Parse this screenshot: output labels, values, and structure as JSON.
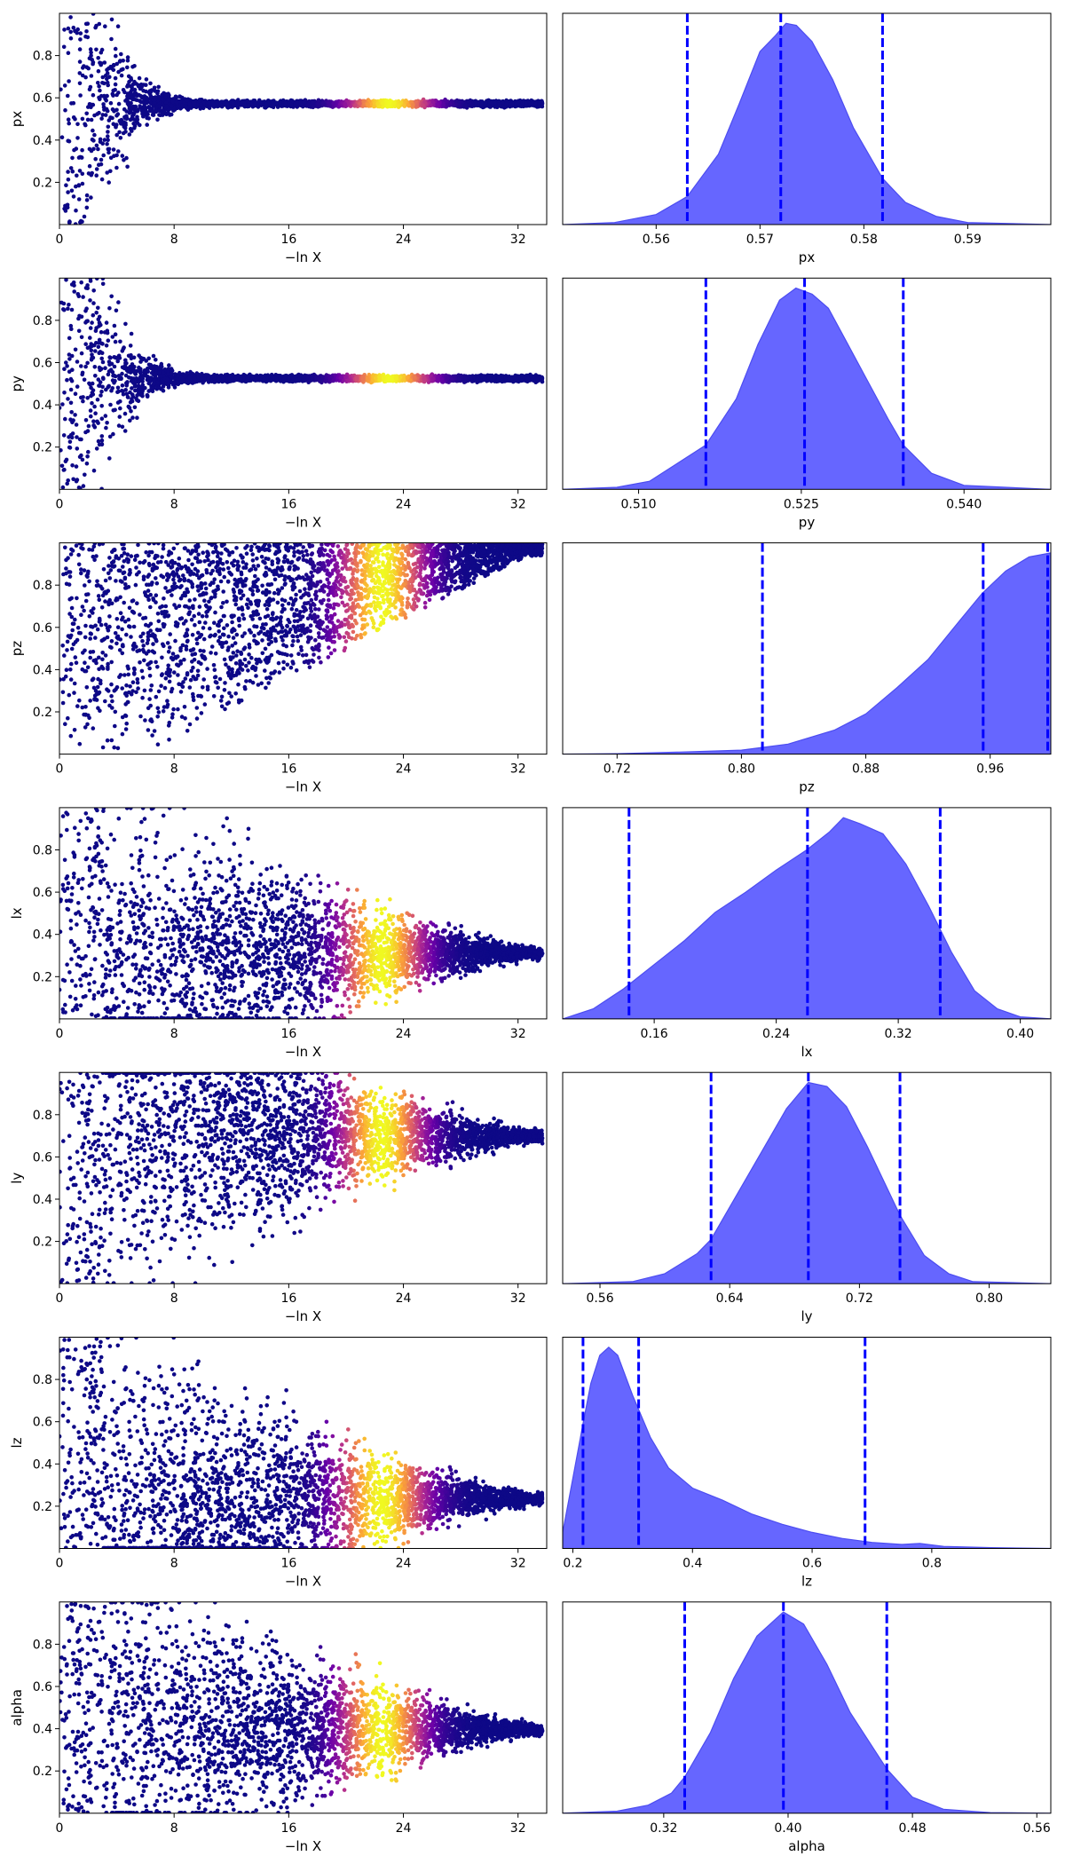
{
  "figure": {
    "background": "#ffffff"
  },
  "colors": {
    "density_fill": "#6666ff",
    "density_edge": "#4c4cf0",
    "quantile_line": "#0000ff",
    "trace_colormap": [
      "#0d0887",
      "#6a00a8",
      "#b12a90",
      "#e16462",
      "#fca636",
      "#f0f921"
    ]
  },
  "chart_data": [
    {
      "parameter": "px",
      "trace": {
        "type": "scatter",
        "xlabel": "−ln X",
        "ylabel": "px",
        "xticks": [
          "0",
          "8",
          "16",
          "24",
          "32"
        ],
        "yticks": [
          "0.2",
          "0.4",
          "0.6",
          "0.8"
        ],
        "xlim": [
          0,
          34
        ],
        "ylim": [
          0,
          1
        ],
        "converged_value": 0.572,
        "collapse_depth": 14,
        "collapse_shape": "funnel",
        "color_peak": 23,
        "color_width": 2.8
      },
      "posterior": {
        "type": "area",
        "xlabel": "px",
        "xticks": [
          "0.56",
          "0.57",
          "0.58",
          "0.59"
        ],
        "xtick_values": [
          0.56,
          0.57,
          0.58,
          0.59
        ],
        "xlim": [
          0.551,
          0.598
        ],
        "peak_x": 0.5725,
        "peak_density": 1.0,
        "quantiles": [
          0.563,
          0.572,
          0.5818
        ],
        "density": [
          [
            0.551,
            0.0
          ],
          [
            0.556,
            0.01
          ],
          [
            0.56,
            0.05
          ],
          [
            0.563,
            0.14
          ],
          [
            0.566,
            0.35
          ],
          [
            0.568,
            0.6
          ],
          [
            0.57,
            0.86
          ],
          [
            0.5715,
            0.94
          ],
          [
            0.5725,
            1.0
          ],
          [
            0.5735,
            0.99
          ],
          [
            0.575,
            0.91
          ],
          [
            0.577,
            0.72
          ],
          [
            0.579,
            0.48
          ],
          [
            0.5818,
            0.23
          ],
          [
            0.584,
            0.11
          ],
          [
            0.587,
            0.04
          ],
          [
            0.59,
            0.01
          ],
          [
            0.598,
            0.0
          ]
        ]
      }
    },
    {
      "parameter": "py",
      "trace": {
        "type": "scatter",
        "xlabel": "−ln X",
        "ylabel": "py",
        "xticks": [
          "0",
          "8",
          "16",
          "24",
          "32"
        ],
        "yticks": [
          "0.2",
          "0.4",
          "0.6",
          "0.8"
        ],
        "xlim": [
          0,
          34
        ],
        "ylim": [
          0,
          1
        ],
        "converged_value": 0.525,
        "collapse_depth": 14,
        "collapse_shape": "funnel",
        "color_peak": 23,
        "color_width": 2.8
      },
      "posterior": {
        "type": "area",
        "xlabel": "py",
        "xticks": [
          "0.510",
          "0.525",
          "0.540"
        ],
        "xtick_values": [
          0.51,
          0.525,
          0.54
        ],
        "xlim": [
          0.503,
          0.548
        ],
        "peak_x": 0.5245,
        "peak_density": 1.0,
        "quantiles": [
          0.5162,
          0.5253,
          0.5344
        ],
        "density": [
          [
            0.503,
            0.0
          ],
          [
            0.508,
            0.01
          ],
          [
            0.511,
            0.04
          ],
          [
            0.5162,
            0.22
          ],
          [
            0.519,
            0.45
          ],
          [
            0.521,
            0.72
          ],
          [
            0.523,
            0.94
          ],
          [
            0.5245,
            1.0
          ],
          [
            0.526,
            0.97
          ],
          [
            0.5275,
            0.9
          ],
          [
            0.529,
            0.75
          ],
          [
            0.531,
            0.55
          ],
          [
            0.533,
            0.35
          ],
          [
            0.5344,
            0.22
          ],
          [
            0.537,
            0.08
          ],
          [
            0.54,
            0.02
          ],
          [
            0.548,
            0.0
          ]
        ]
      }
    },
    {
      "parameter": "pz",
      "trace": {
        "type": "scatter",
        "xlabel": "−ln X",
        "ylabel": "pz",
        "xticks": [
          "0",
          "8",
          "16",
          "24",
          "32"
        ],
        "yticks": [
          "0.2",
          "0.4",
          "0.6",
          "0.8"
        ],
        "xlim": [
          0,
          34
        ],
        "ylim": [
          0,
          1
        ],
        "converged_value": 0.99,
        "collapse_depth": 33,
        "collapse_shape": "top",
        "color_peak": 22.5,
        "color_width": 2.8
      },
      "posterior": {
        "type": "area",
        "xlabel": "pz",
        "xticks": [
          "0.72",
          "0.80",
          "0.88",
          "0.96"
        ],
        "xtick_values": [
          0.72,
          0.8,
          0.88,
          0.96
        ],
        "xlim": [
          0.685,
          0.999
        ],
        "peak_x": 0.99,
        "peak_density": 1.0,
        "quantiles": [
          0.8135,
          0.9555,
          0.997
        ],
        "density": [
          [
            0.685,
            0.0
          ],
          [
            0.72,
            0.002
          ],
          [
            0.76,
            0.01
          ],
          [
            0.8,
            0.02
          ],
          [
            0.83,
            0.05
          ],
          [
            0.86,
            0.12
          ],
          [
            0.88,
            0.2
          ],
          [
            0.9,
            0.33
          ],
          [
            0.92,
            0.47
          ],
          [
            0.94,
            0.66
          ],
          [
            0.955,
            0.8
          ],
          [
            0.97,
            0.91
          ],
          [
            0.985,
            0.98
          ],
          [
            0.999,
            1.0
          ]
        ]
      }
    },
    {
      "parameter": "lx",
      "trace": {
        "type": "scatter",
        "xlabel": "−ln X",
        "ylabel": "lx",
        "xticks": [
          "0",
          "8",
          "16",
          "24",
          "32"
        ],
        "yticks": [
          "0.2",
          "0.4",
          "0.6",
          "0.8"
        ],
        "xlim": [
          0,
          34
        ],
        "ylim": [
          0,
          1
        ],
        "converged_value": 0.31,
        "collapse_depth": 33,
        "collapse_shape": "wedge",
        "color_peak": 22.5,
        "color_width": 2.8
      },
      "posterior": {
        "type": "area",
        "xlabel": "lx",
        "xticks": [
          "0.16",
          "0.24",
          "0.32",
          "0.40"
        ],
        "xtick_values": [
          0.16,
          0.24,
          0.32,
          0.4
        ],
        "xlim": [
          0.1,
          0.42
        ],
        "peak_x": 0.284,
        "peak_density": 1.0,
        "quantiles": [
          0.1435,
          0.2605,
          0.3475
        ],
        "density": [
          [
            0.1,
            0.0
          ],
          [
            0.12,
            0.05
          ],
          [
            0.14,
            0.15
          ],
          [
            0.16,
            0.27
          ],
          [
            0.18,
            0.39
          ],
          [
            0.2,
            0.53
          ],
          [
            0.22,
            0.63
          ],
          [
            0.24,
            0.74
          ],
          [
            0.26,
            0.84
          ],
          [
            0.275,
            0.93
          ],
          [
            0.284,
            1.0
          ],
          [
            0.295,
            0.97
          ],
          [
            0.31,
            0.92
          ],
          [
            0.325,
            0.77
          ],
          [
            0.34,
            0.56
          ],
          [
            0.355,
            0.33
          ],
          [
            0.37,
            0.14
          ],
          [
            0.385,
            0.05
          ],
          [
            0.4,
            0.01
          ],
          [
            0.42,
            0.0
          ]
        ]
      }
    },
    {
      "parameter": "ly",
      "trace": {
        "type": "scatter",
        "xlabel": "−ln X",
        "ylabel": "ly",
        "xticks": [
          "0",
          "8",
          "16",
          "24",
          "32"
        ],
        "yticks": [
          "0.2",
          "0.4",
          "0.6",
          "0.8"
        ],
        "xlim": [
          0,
          34
        ],
        "ylim": [
          0,
          1
        ],
        "converged_value": 0.7,
        "collapse_depth": 33,
        "collapse_shape": "wedge",
        "color_peak": 22.5,
        "color_width": 2.8
      },
      "posterior": {
        "type": "area",
        "xlabel": "ly",
        "xticks": [
          "0.56",
          "0.64",
          "0.72",
          "0.80"
        ],
        "xtick_values": [
          0.56,
          0.64,
          0.72,
          0.8
        ],
        "xlim": [
          0.537,
          0.838
        ],
        "peak_x": 0.6885,
        "peak_density": 1.0,
        "quantiles": [
          0.6285,
          0.6885,
          0.745
        ],
        "density": [
          [
            0.537,
            0.0
          ],
          [
            0.58,
            0.01
          ],
          [
            0.6,
            0.05
          ],
          [
            0.62,
            0.15
          ],
          [
            0.6285,
            0.22
          ],
          [
            0.645,
            0.45
          ],
          [
            0.66,
            0.66
          ],
          [
            0.675,
            0.87
          ],
          [
            0.6885,
            1.0
          ],
          [
            0.7,
            0.98
          ],
          [
            0.712,
            0.88
          ],
          [
            0.725,
            0.68
          ],
          [
            0.745,
            0.34
          ],
          [
            0.76,
            0.14
          ],
          [
            0.775,
            0.05
          ],
          [
            0.79,
            0.01
          ],
          [
            0.838,
            0.0
          ]
        ]
      }
    },
    {
      "parameter": "lz",
      "trace": {
        "type": "scatter",
        "xlabel": "−ln X",
        "ylabel": "lz",
        "xticks": [
          "0",
          "8",
          "16",
          "24",
          "32"
        ],
        "yticks": [
          "0.2",
          "0.4",
          "0.6",
          "0.8"
        ],
        "xlim": [
          0,
          34
        ],
        "ylim": [
          0,
          1
        ],
        "converged_value": 0.235,
        "collapse_depth": 33,
        "collapse_shape": "wedge",
        "color_peak": 22.5,
        "color_width": 3.0
      },
      "posterior": {
        "type": "area",
        "xlabel": "lz",
        "xticks": [
          "0.2",
          "0.4",
          "0.6",
          "0.8"
        ],
        "xtick_values": [
          0.2,
          0.4,
          0.6,
          0.8
        ],
        "xlim": [
          0.183,
          0.999
        ],
        "peak_x": 0.26,
        "peak_density": 1.0,
        "quantiles": [
          0.217,
          0.31,
          0.6885
        ],
        "density": [
          [
            0.183,
            0.08
          ],
          [
            0.2,
            0.35
          ],
          [
            0.217,
            0.62
          ],
          [
            0.23,
            0.82
          ],
          [
            0.245,
            0.96
          ],
          [
            0.26,
            1.0
          ],
          [
            0.275,
            0.96
          ],
          [
            0.3,
            0.76
          ],
          [
            0.33,
            0.55
          ],
          [
            0.36,
            0.4
          ],
          [
            0.4,
            0.3
          ],
          [
            0.45,
            0.24
          ],
          [
            0.5,
            0.17
          ],
          [
            0.55,
            0.12
          ],
          [
            0.6,
            0.08
          ],
          [
            0.65,
            0.05
          ],
          [
            0.7,
            0.03
          ],
          [
            0.75,
            0.02
          ],
          [
            0.78,
            0.025
          ],
          [
            0.82,
            0.01
          ],
          [
            0.9,
            0.004
          ],
          [
            0.999,
            0.0
          ]
        ]
      }
    },
    {
      "parameter": "alpha",
      "trace": {
        "type": "scatter",
        "xlabel": "−ln X",
        "ylabel": "alpha",
        "xticks": [
          "0",
          "8",
          "16",
          "24",
          "32"
        ],
        "yticks": [
          "0.2",
          "0.4",
          "0.6",
          "0.8"
        ],
        "xlim": [
          0,
          34
        ],
        "ylim": [
          0,
          1
        ],
        "converged_value": 0.397,
        "collapse_depth": 33,
        "collapse_shape": "wedge",
        "color_peak": 22.5,
        "color_width": 2.8
      },
      "posterior": {
        "type": "area",
        "xlabel": "alpha",
        "xticks": [
          "0.32",
          "0.40",
          "0.48",
          "0.56"
        ],
        "xtick_values": [
          0.32,
          0.4,
          0.48,
          0.56
        ],
        "xlim": [
          0.255,
          0.569
        ],
        "peak_x": 0.397,
        "peak_density": 1.0,
        "quantiles": [
          0.3335,
          0.397,
          0.4635
        ],
        "density": [
          [
            0.255,
            0.0
          ],
          [
            0.29,
            0.01
          ],
          [
            0.31,
            0.04
          ],
          [
            0.325,
            0.1
          ],
          [
            0.3335,
            0.18
          ],
          [
            0.35,
            0.4
          ],
          [
            0.365,
            0.67
          ],
          [
            0.38,
            0.88
          ],
          [
            0.397,
            1.0
          ],
          [
            0.41,
            0.94
          ],
          [
            0.425,
            0.74
          ],
          [
            0.44,
            0.5
          ],
          [
            0.4635,
            0.22
          ],
          [
            0.48,
            0.08
          ],
          [
            0.5,
            0.02
          ],
          [
            0.53,
            0.003
          ],
          [
            0.569,
            0.0
          ]
        ]
      }
    }
  ]
}
